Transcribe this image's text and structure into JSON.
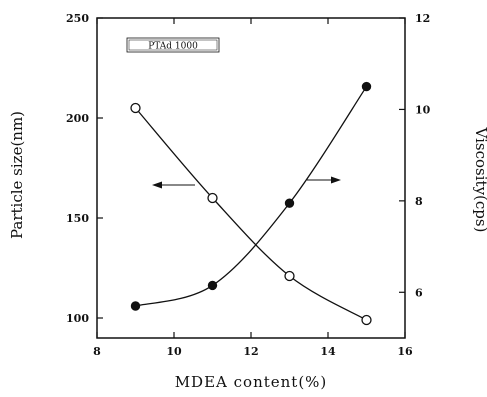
{
  "chart_data": {
    "type": "scatter",
    "xlabel": "MDEA content(%)",
    "ylabel_left": "Particle size(nm)",
    "ylabel_right": "Viscosity(cps)",
    "xlim": [
      8,
      16
    ],
    "ylim_left": [
      90,
      250
    ],
    "ylim_right": [
      5,
      12
    ],
    "x_ticks": [
      8,
      10,
      12,
      14,
      16
    ],
    "y_ticks_left": [
      100,
      150,
      200,
      250
    ],
    "y_ticks_right": [
      6,
      8,
      10,
      12
    ],
    "legend_label": "PTAd 1000",
    "series": [
      {
        "axis": "left",
        "marker": "open-circle",
        "x": [
          9,
          11,
          13,
          15
        ],
        "y": [
          205,
          160,
          121,
          99
        ]
      },
      {
        "axis": "right",
        "marker": "filled-circle",
        "x": [
          9,
          11,
          13,
          15
        ],
        "y": [
          5.7,
          6.15,
          7.95,
          10.5
        ]
      }
    ]
  }
}
